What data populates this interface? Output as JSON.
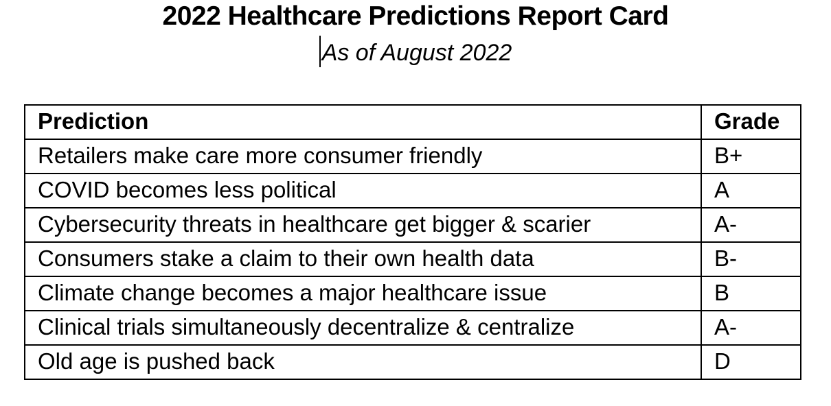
{
  "document": {
    "title": "2022 Healthcare Predictions Report Card",
    "subtitle": "As of August 2022"
  },
  "table": {
    "headers": [
      "Prediction",
      "Grade"
    ],
    "rows": [
      {
        "prediction": "Retailers make care more consumer friendly",
        "grade": "B+"
      },
      {
        "prediction": "COVID becomes less political",
        "grade": "A"
      },
      {
        "prediction": "Cybersecurity threats in healthcare get bigger & scarier",
        "grade": "A-"
      },
      {
        "prediction": "Consumers stake a claim to their own health data",
        "grade": "B-"
      },
      {
        "prediction": "Climate change becomes a major healthcare issue",
        "grade": "B"
      },
      {
        "prediction": "Clinical trials simultaneously decentralize & centralize",
        "grade": "A-"
      },
      {
        "prediction": "Old age is pushed back",
        "grade": "D"
      }
    ]
  },
  "colors": {
    "text": "#000000",
    "background": "#ffffff",
    "border": "#000000"
  }
}
